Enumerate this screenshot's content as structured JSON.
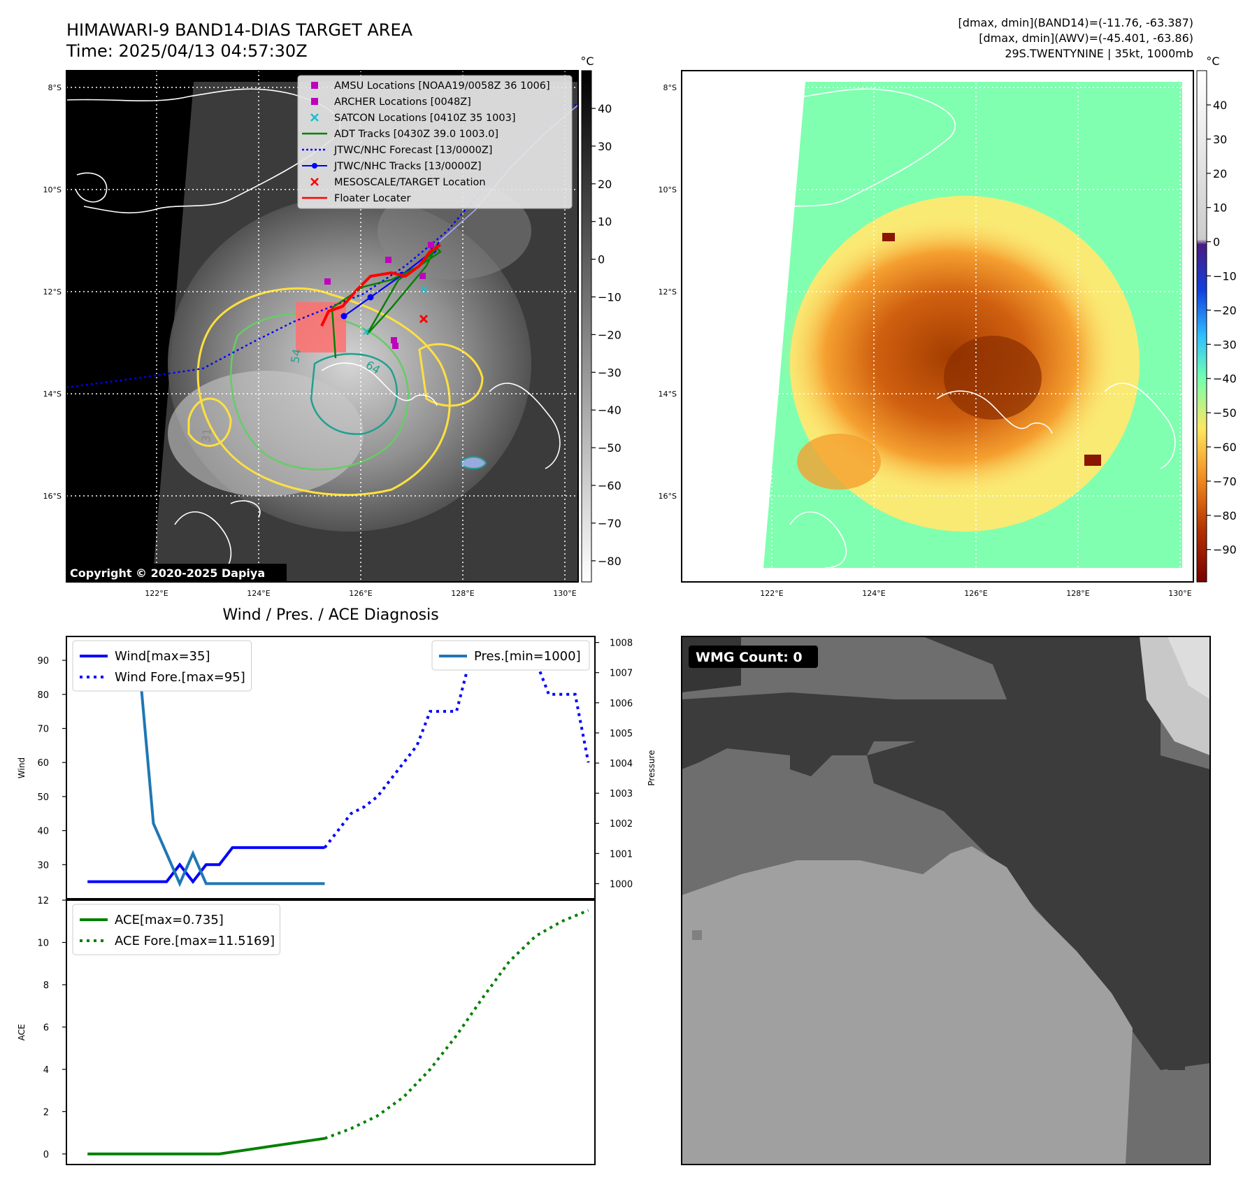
{
  "header": {
    "title_line1": "HIMAWARI-9 BAND14-DIAS TARGET AREA",
    "title_line2": "Time: 2025/04/13 04:57:30Z",
    "info_line1": "[dmax, dmin](BAND14)=(-11.76, -63.387)",
    "info_line2": "[dmax, dmin](AWV)=(-45.401, -63.86)",
    "info_line3": "29S.TWENTYNINE | 35kt, 1000mb"
  },
  "map_common": {
    "lat_labels": [
      "8°S",
      "10°S",
      "12°S",
      "14°S",
      "16°S"
    ],
    "lon_labels": [
      "122°E",
      "124°E",
      "126°E",
      "128°E",
      "130°E"
    ]
  },
  "ir_panel": {
    "colorbar_unit": "°C",
    "colorbar_ticks": [
      "40",
      "30",
      "20",
      "10",
      "0",
      "−10",
      "−20",
      "−30",
      "−40",
      "−50",
      "−60",
      "−70",
      "−80"
    ],
    "copyright": "Copyright © 2020-2025 Dapiya",
    "contour_labels": [
      "54",
      "64",
      "31"
    ],
    "legend": [
      {
        "label": "AMSU Locations [NOAA19/0058Z 36 1006]",
        "marker": "square",
        "color": "#bf00bf"
      },
      {
        "label": "ARCHER Locations [0048Z]",
        "marker": "square",
        "color": "#bf00bf"
      },
      {
        "label": "SATCON Locations [0410Z 35 1003]",
        "marker": "x",
        "color": "#17becf"
      },
      {
        "label": "ADT Tracks [0430Z 39.0 1003.0]",
        "marker": "line",
        "color": "#008000"
      },
      {
        "label": "JTWC/NHC Forecast [13/0000Z]",
        "marker": "dotted",
        "color": "#0000ff"
      },
      {
        "label": "JTWC/NHC Tracks [13/0000Z]",
        "marker": "line-dot",
        "color": "#0000ff"
      },
      {
        "label": "MESOSCALE/TARGET Location",
        "marker": "x",
        "color": "#ff0000"
      },
      {
        "label": "Floater Locater",
        "marker": "line",
        "color": "#ff0000"
      }
    ]
  },
  "wv_panel": {
    "colorbar_unit": "°C",
    "colorbar_ticks": [
      "40",
      "30",
      "20",
      "10",
      "0",
      "−10",
      "−20",
      "−30",
      "−40",
      "−50",
      "−60",
      "−70",
      "−80",
      "−90"
    ]
  },
  "wmg_panel": {
    "badge": "WMG Count: 0"
  },
  "colors": {
    "wind": "#0000ff",
    "pressure": "#1f77b4",
    "ace": "#008000",
    "wv_green": "#7dffa0",
    "wv_yellow": "#ffe760",
    "wv_orange": "#f08a20",
    "wv_brown": "#a33d00"
  },
  "chart_data": [
    {
      "type": "line",
      "title": "Wind / Pres. / ACE Diagnosis",
      "ylabel": "Wind",
      "y2label": "Pressure",
      "ylim": [
        20,
        97
      ],
      "y2lim": [
        999.5,
        1008.2
      ],
      "y_ticks": [
        30,
        40,
        50,
        60,
        70,
        80,
        90
      ],
      "y2_ticks": [
        1000,
        1001,
        1002,
        1003,
        1004,
        1005,
        1006,
        1007,
        1008
      ],
      "x": [
        0,
        1,
        2,
        3,
        4,
        5,
        6,
        7,
        8,
        9,
        10,
        11,
        12,
        13,
        14,
        15,
        16,
        17,
        18,
        19,
        20,
        21,
        22,
        23,
        24,
        25,
        26,
        27,
        28,
        29,
        30,
        31,
        32,
        33,
        34,
        35,
        36,
        37,
        38
      ],
      "xlim": [
        -1.6,
        38.5
      ],
      "series": [
        {
          "name": "Wind[max=35]",
          "axis": "left",
          "style": "solid",
          "color": "#0000ff",
          "x": [
            0,
            6,
            7,
            8,
            9,
            10,
            11,
            12,
            13,
            14,
            15,
            16,
            17,
            18
          ],
          "y": [
            25,
            25,
            30,
            25,
            30,
            30,
            35,
            35,
            35,
            35,
            35,
            35,
            35,
            35
          ]
        },
        {
          "name": "Wind Fore.[max=95]",
          "axis": "left",
          "style": "dotted",
          "color": "#0000ff",
          "x": [
            18,
            19,
            20,
            21,
            22,
            23,
            24,
            25,
            26,
            27,
            28,
            29,
            30,
            31,
            32,
            33,
            34,
            35,
            36,
            37,
            38
          ],
          "y": [
            35,
            40,
            45,
            47,
            50,
            55,
            60,
            65,
            75,
            75,
            75,
            90,
            95,
            95,
            95,
            95,
            90,
            80,
            80,
            80,
            60
          ]
        },
        {
          "name": "Pres.[min=1000]",
          "axis": "right",
          "style": "solid",
          "color": "#1f77b4",
          "x": [
            0,
            1,
            2,
            3,
            4,
            5,
            6,
            7,
            8,
            9,
            10,
            11,
            12,
            13,
            14,
            15,
            16,
            17,
            18
          ],
          "y": [
            1008,
            1007.4,
            1007.4,
            1006.9,
            1006.9,
            1002,
            1001,
            1000,
            1001,
            1000,
            1000,
            1000,
            1000,
            1000,
            1000,
            1000,
            1000,
            1000,
            1000
          ]
        }
      ]
    },
    {
      "type": "line",
      "ylabel": "ACE",
      "ylim": [
        -0.5,
        12
      ],
      "y_ticks": [
        0,
        2,
        4,
        6,
        8,
        10,
        12
      ],
      "xlim": [
        -1.6,
        38.5
      ],
      "series": [
        {
          "name": "ACE[max=0.735]",
          "style": "solid",
          "color": "#008000",
          "x": [
            0,
            3,
            6,
            10,
            14,
            18
          ],
          "y": [
            0,
            0,
            0,
            0,
            0.37,
            0.735
          ]
        },
        {
          "name": "ACE Fore.[max=11.5169]",
          "style": "dotted",
          "color": "#008000",
          "x": [
            18,
            20,
            22,
            24,
            26,
            28,
            30,
            32,
            34,
            36,
            38
          ],
          "y": [
            0.735,
            1.2,
            1.8,
            2.7,
            4.0,
            5.6,
            7.4,
            9.1,
            10.3,
            11.0,
            11.5169
          ]
        }
      ]
    }
  ]
}
